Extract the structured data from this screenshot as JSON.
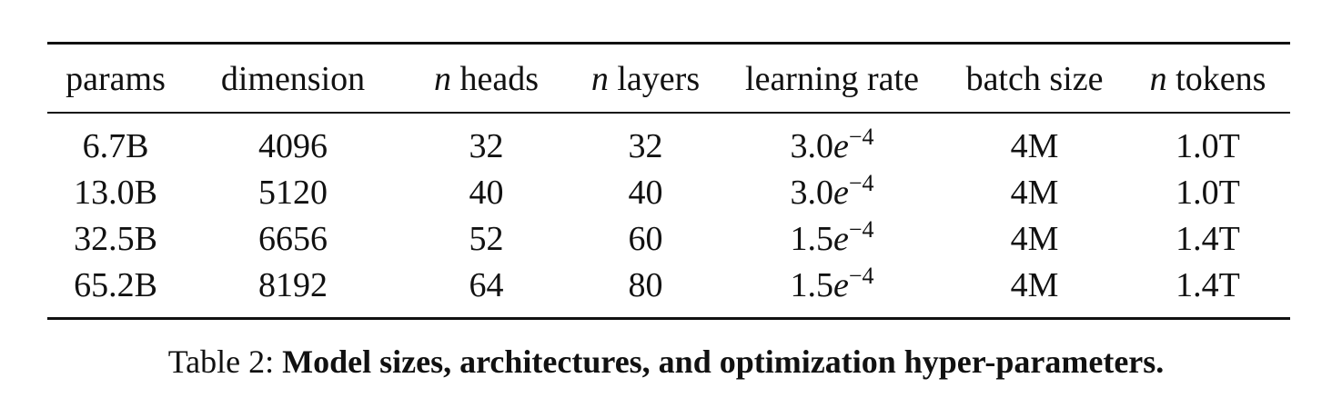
{
  "table": {
    "headers": [
      {
        "prefix": "",
        "text": "params"
      },
      {
        "prefix": "",
        "text": "dimension"
      },
      {
        "prefix": "n",
        "text": " heads"
      },
      {
        "prefix": "n",
        "text": " layers"
      },
      {
        "prefix": "",
        "text": "learning rate"
      },
      {
        "prefix": "",
        "text": "batch size"
      },
      {
        "prefix": "n",
        "text": " tokens"
      }
    ],
    "rows": [
      {
        "params": "6.7B",
        "dimension": "4096",
        "heads": "32",
        "layers": "32",
        "lr_base": "3.0",
        "lr_e": "e",
        "lr_exp": "−4",
        "batch": "4M",
        "tokens": "1.0T"
      },
      {
        "params": "13.0B",
        "dimension": "5120",
        "heads": "40",
        "layers": "40",
        "lr_base": "3.0",
        "lr_e": "e",
        "lr_exp": "−4",
        "batch": "4M",
        "tokens": "1.0T"
      },
      {
        "params": "32.5B",
        "dimension": "6656",
        "heads": "52",
        "layers": "60",
        "lr_base": "1.5",
        "lr_e": "e",
        "lr_exp": "−4",
        "batch": "4M",
        "tokens": "1.4T"
      },
      {
        "params": "65.2B",
        "dimension": "8192",
        "heads": "64",
        "layers": "80",
        "lr_base": "1.5",
        "lr_e": "e",
        "lr_exp": "−4",
        "batch": "4M",
        "tokens": "1.4T"
      }
    ]
  },
  "caption": {
    "label": "Table 2: ",
    "text": "Model sizes, architectures, and optimization hyper-parameters."
  }
}
